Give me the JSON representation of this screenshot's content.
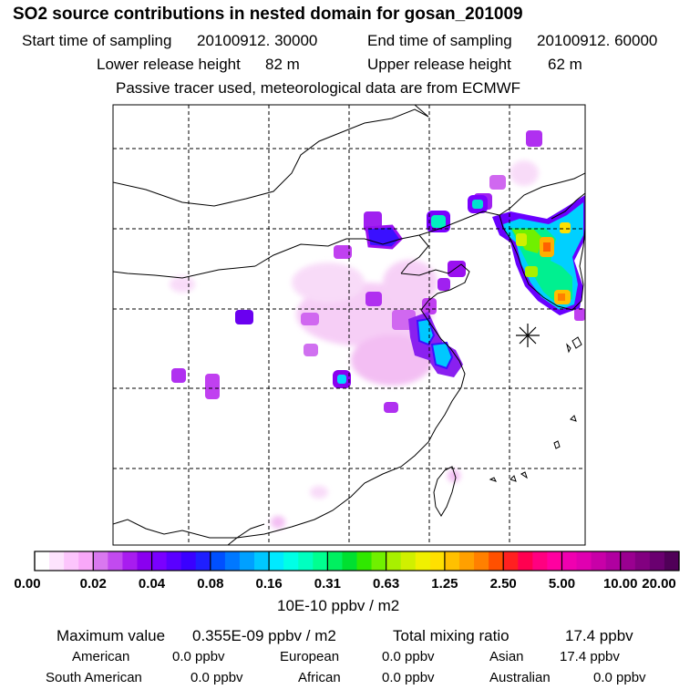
{
  "title": "SO2 source contributions in nested domain for gosan_201009",
  "sampling": {
    "start_label": "Start time of sampling",
    "start_value": "20100912. 30000",
    "end_label": "End time of sampling",
    "end_value": "20100912. 60000"
  },
  "release": {
    "lower_label": "Lower release height",
    "lower_value": "82 m",
    "upper_label": "Upper release height",
    "upper_value": "62 m"
  },
  "note": "Passive tracer used, meteorological data are from ECMWF",
  "colorbar": {
    "labels": [
      "0.00",
      "0.02",
      "0.04",
      "0.08",
      "0.16",
      "0.31",
      "0.63",
      "1.25",
      "2.50",
      "5.00",
      "10.00",
      "20.00"
    ],
    "colors": [
      "#ffffff",
      "#fde3fd",
      "#fcc5fc",
      "#f9a8f9",
      "#d978ef",
      "#c24aef",
      "#a81cef",
      "#8a00ef",
      "#7a00ff",
      "#5a00ff",
      "#3a00ff",
      "#1f1fff",
      "#0050ff",
      "#0078ff",
      "#00a0ff",
      "#00c8ff",
      "#00eaff",
      "#00ffe6",
      "#00ffc0",
      "#00ff90",
      "#00f060",
      "#00e030",
      "#30e800",
      "#70f000",
      "#a8f000",
      "#d0f000",
      "#f0f000",
      "#ffe000",
      "#ffc000",
      "#ffa000",
      "#ff8000",
      "#ff5000",
      "#ff2020",
      "#ff0050",
      "#ff0080",
      "#ff00a0",
      "#f000b0",
      "#e000b0",
      "#c800a8",
      "#b000a0",
      "#9a0090",
      "#820080",
      "#6a0070",
      "#500058"
    ],
    "unit": "10E-10 ppbv / m2"
  },
  "summary": {
    "max_label": "Maximum value",
    "max_value": "0.355E-09 ppbv / m2",
    "total_label": "Total mixing ratio",
    "total_value": "17.4 ppbv"
  },
  "regions": [
    {
      "name": "American",
      "value": "0.0 ppbv"
    },
    {
      "name": "European",
      "value": "0.0 ppbv"
    },
    {
      "name": "Asian",
      "value": "17.4 ppbv"
    },
    {
      "name": "South American",
      "value": "0.0 ppbv"
    },
    {
      "name": "African",
      "value": "0.0 ppbv"
    },
    {
      "name": "Australian",
      "value": "0.0 ppbv"
    }
  ],
  "receptor_marker": "gosan-receptor-star"
}
